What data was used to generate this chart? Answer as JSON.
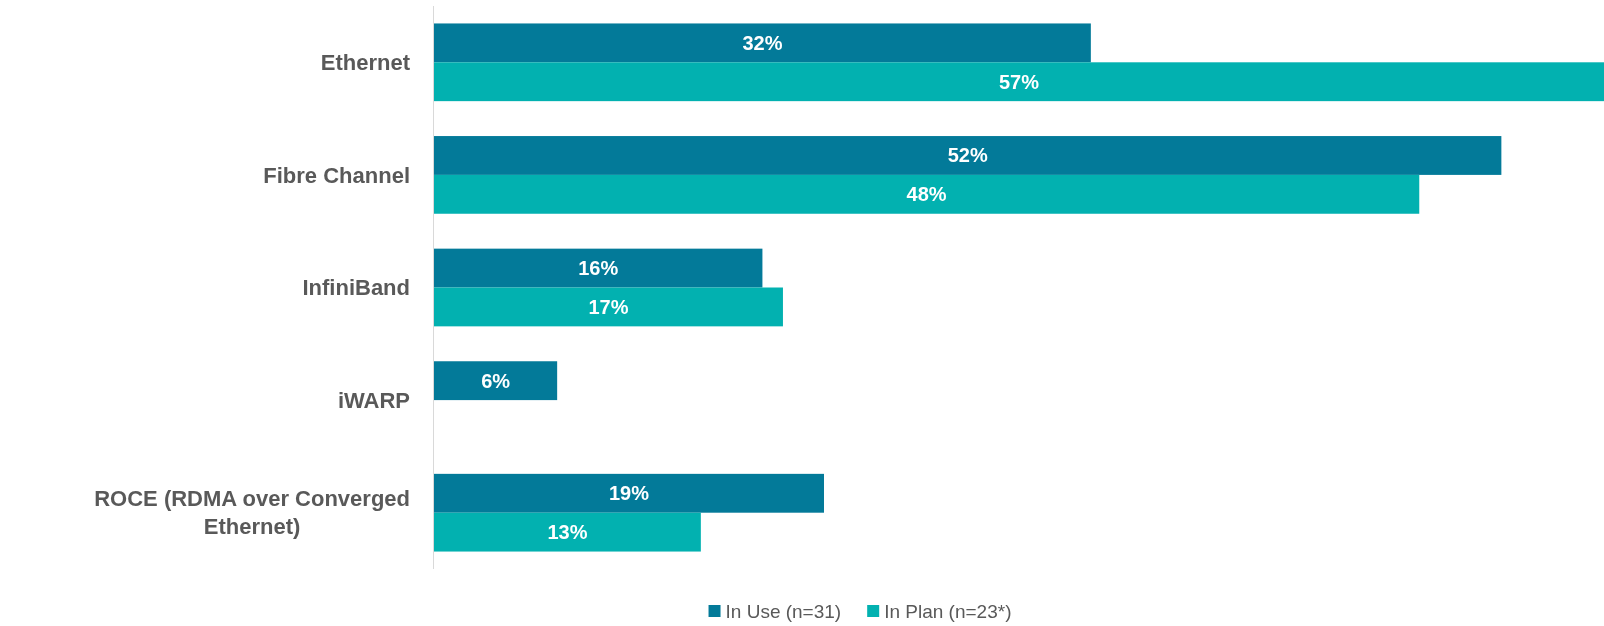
{
  "chart_data": {
    "type": "bar",
    "orientation": "horizontal",
    "categories": [
      "Ethernet",
      "Fibre Channel",
      "InfiniBand",
      "iWARP",
      "ROCE (RDMA over Converged Ethernet)"
    ],
    "series": [
      {
        "name": "In Use (n=31)",
        "color": "#037a99",
        "values": [
          32,
          52,
          16,
          6,
          19
        ],
        "value_labels": [
          "32%",
          "52%",
          "16%",
          "6%",
          "19%"
        ]
      },
      {
        "name": "In Plan (n=23*)",
        "color": "#02b1b0",
        "values": [
          57,
          48,
          17,
          null,
          13
        ],
        "value_labels": [
          "57%",
          "48%",
          "17%",
          null,
          "13%"
        ]
      }
    ],
    "legend": "bottom"
  }
}
